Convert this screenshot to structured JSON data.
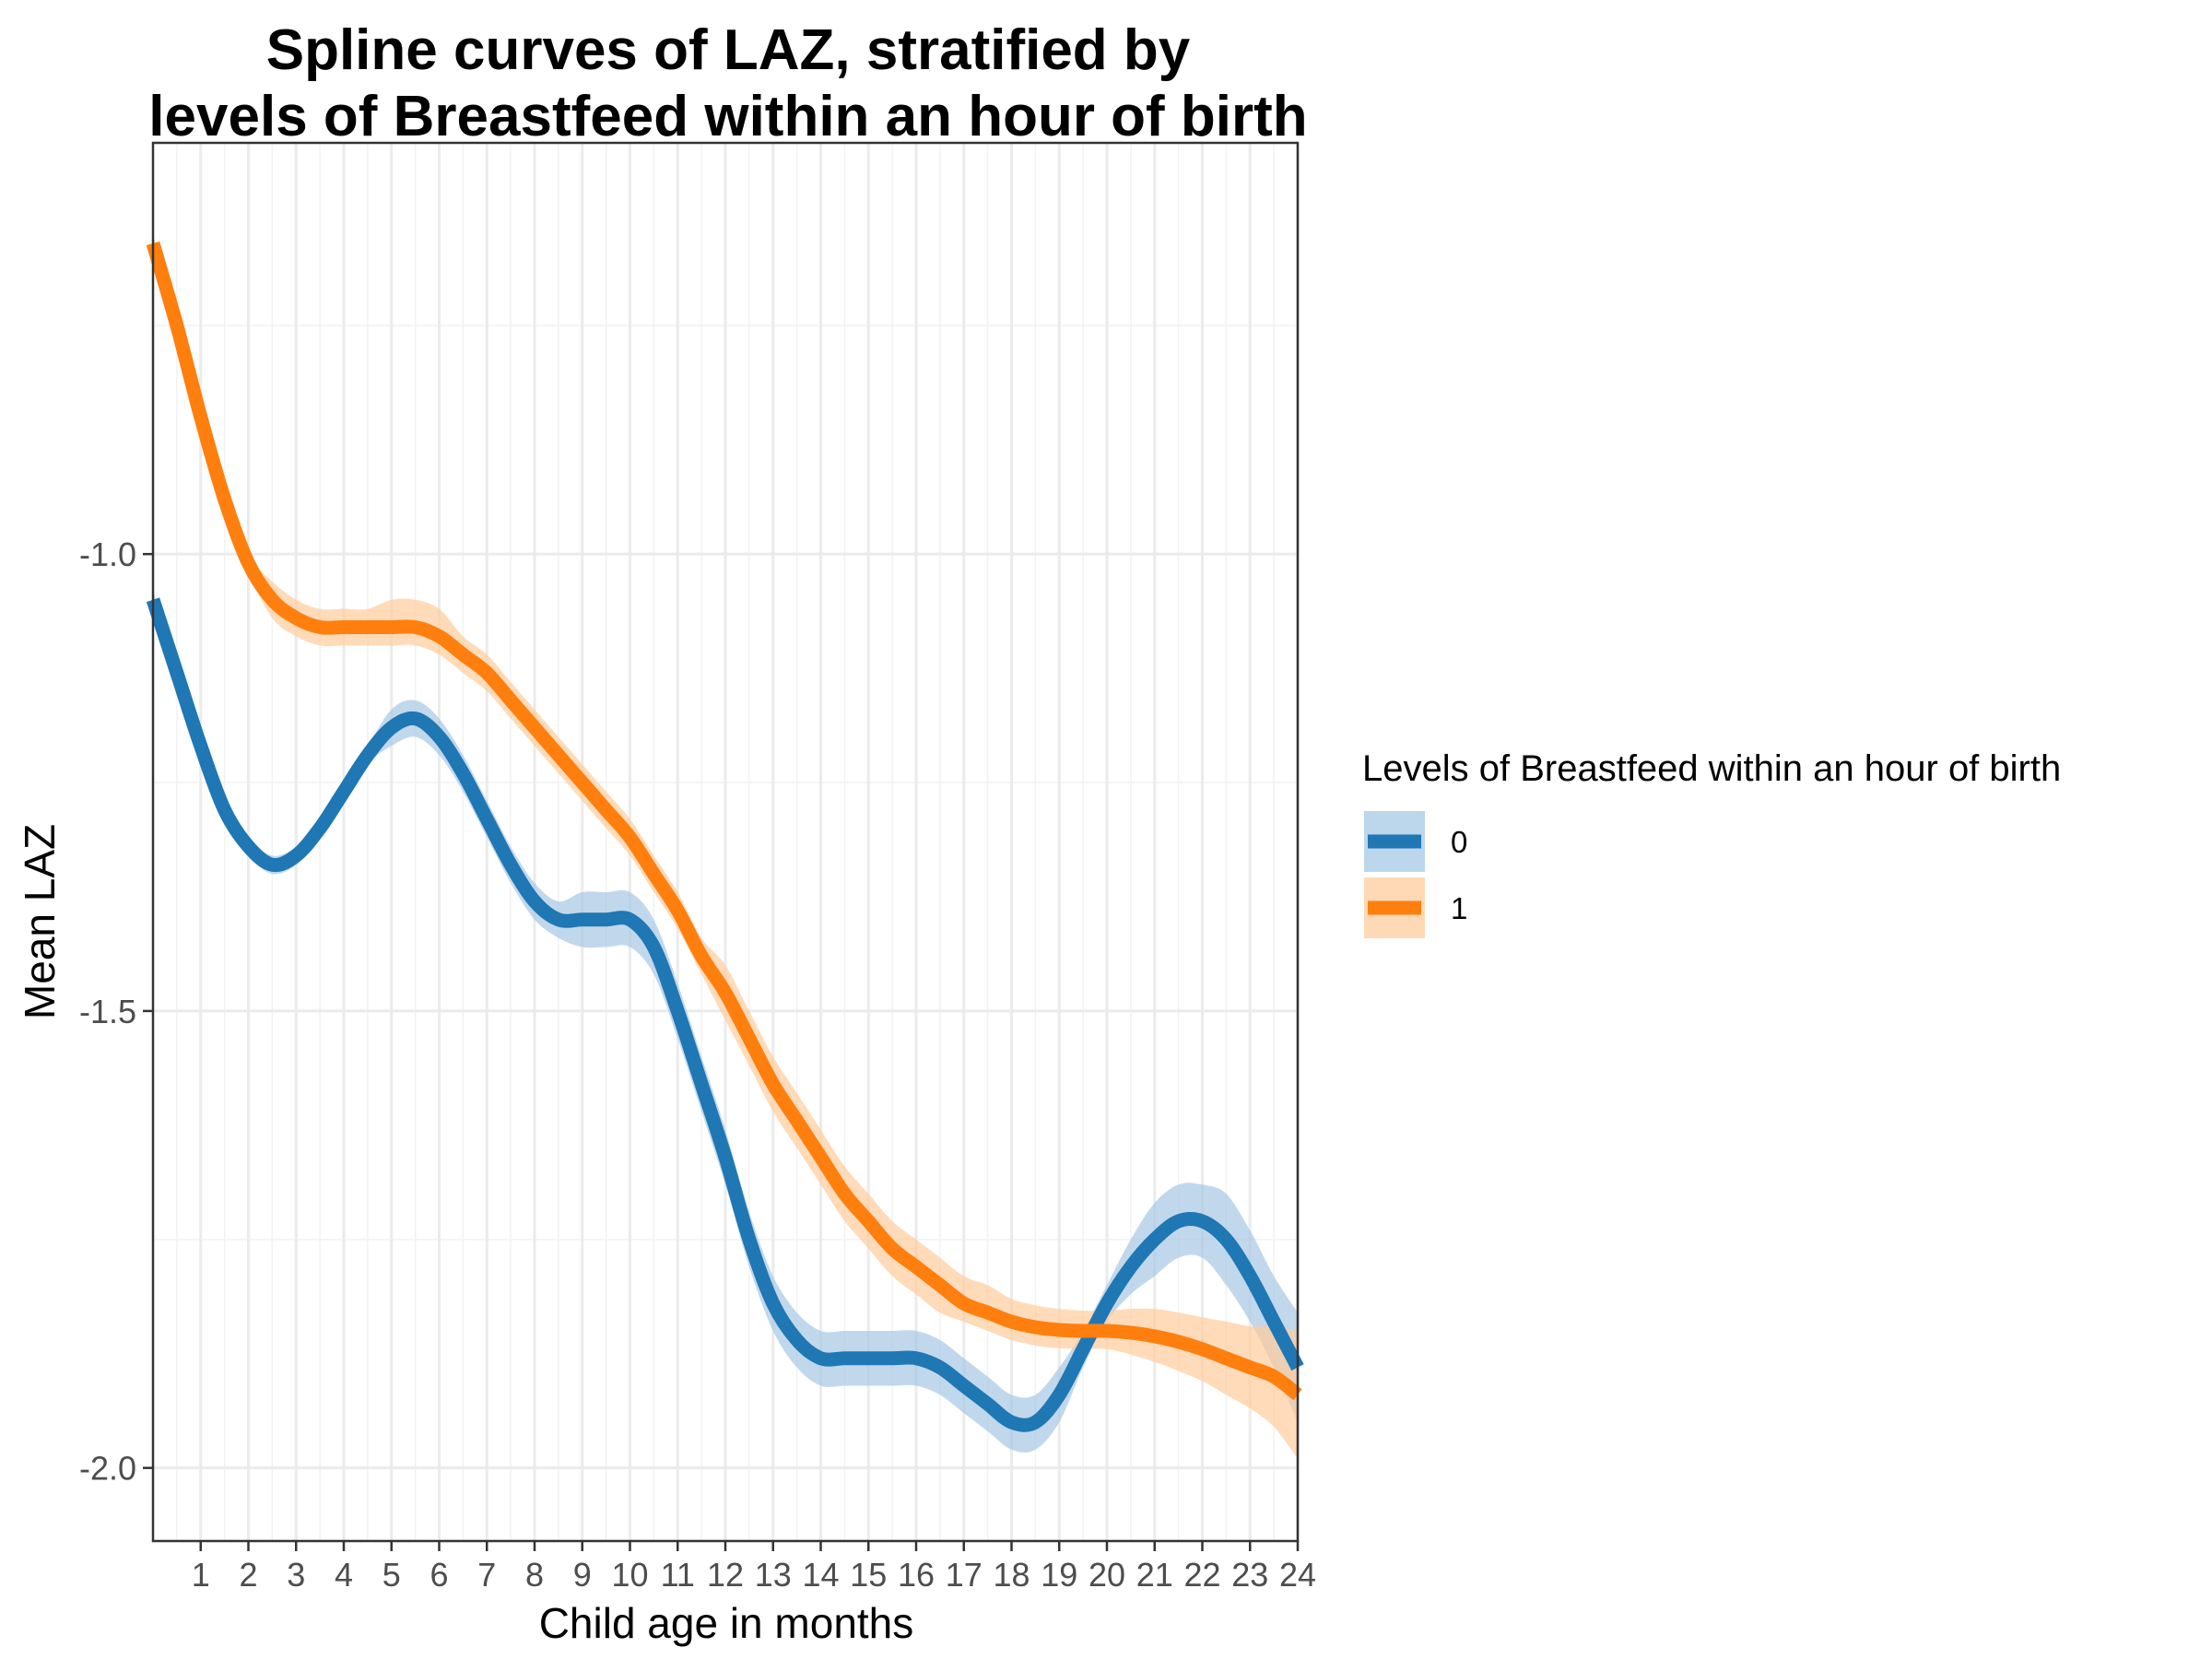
{
  "chart_data": {
    "type": "line",
    "title": [
      "Spline curves of LAZ, stratified by",
      "levels of Breastfeed within an hour of birth"
    ],
    "xlabel": "Child age in months",
    "ylabel": "Mean LAZ",
    "xlim": [
      0,
      24
    ],
    "ylim": [
      -2.08,
      -0.55
    ],
    "x_ticks": [
      1,
      2,
      3,
      4,
      5,
      6,
      7,
      8,
      9,
      10,
      11,
      12,
      13,
      14,
      15,
      16,
      17,
      18,
      19,
      20,
      21,
      22,
      23,
      24
    ],
    "x_tick_labels": [
      "1",
      "2",
      "3",
      "4",
      "5",
      "6",
      "7",
      "8",
      "9",
      "10",
      "11",
      "12",
      "13",
      "14",
      "15",
      "16",
      "17",
      "18",
      "19",
      "20",
      "21",
      "22",
      "23",
      "24"
    ],
    "y_ticks": [
      -1.0,
      -1.5,
      -2.0
    ],
    "y_tick_labels": [
      "-1.0",
      "-1.5",
      "-2.0"
    ],
    "grid": true,
    "legend": {
      "title": "Levels of Breastfeed within an hour of birth",
      "position": "right"
    },
    "series": [
      {
        "name": "0",
        "color": "#1F77B4",
        "band_color": "#A6C8E4",
        "x": [
          0,
          0.5,
          1,
          1.5,
          2,
          2.5,
          3,
          3.5,
          4,
          4.5,
          5,
          5.5,
          6,
          6.5,
          7,
          7.5,
          8,
          8.5,
          9,
          9.5,
          10,
          10.5,
          11,
          11.5,
          12,
          12.5,
          13,
          13.5,
          14,
          14.5,
          15,
          15.5,
          16,
          16.5,
          17,
          17.5,
          18,
          18.5,
          19,
          19.5,
          20,
          20.5,
          21,
          21.5,
          22,
          22.5,
          23,
          23.5,
          24
        ],
        "y": [
          -1.05,
          -1.13,
          -1.21,
          -1.28,
          -1.32,
          -1.34,
          -1.33,
          -1.3,
          -1.26,
          -1.22,
          -1.19,
          -1.18,
          -1.2,
          -1.24,
          -1.29,
          -1.34,
          -1.38,
          -1.4,
          -1.4,
          -1.4,
          -1.4,
          -1.43,
          -1.5,
          -1.58,
          -1.66,
          -1.75,
          -1.82,
          -1.86,
          -1.88,
          -1.88,
          -1.88,
          -1.88,
          -1.88,
          -1.89,
          -1.91,
          -1.93,
          -1.95,
          -1.95,
          -1.92,
          -1.87,
          -1.82,
          -1.78,
          -1.75,
          -1.73,
          -1.73,
          -1.75,
          -1.79,
          -1.84,
          -1.89
        ],
        "lower": [
          -1.06,
          -1.14,
          -1.22,
          -1.29,
          -1.33,
          -1.35,
          -1.34,
          -1.31,
          -1.27,
          -1.23,
          -1.21,
          -1.2,
          -1.22,
          -1.26,
          -1.31,
          -1.36,
          -1.4,
          -1.42,
          -1.43,
          -1.43,
          -1.43,
          -1.46,
          -1.53,
          -1.61,
          -1.69,
          -1.78,
          -1.85,
          -1.89,
          -1.91,
          -1.91,
          -1.91,
          -1.91,
          -1.91,
          -1.92,
          -1.94,
          -1.96,
          -1.98,
          -1.98,
          -1.95,
          -1.89,
          -1.84,
          -1.81,
          -1.79,
          -1.77,
          -1.77,
          -1.8,
          -1.84,
          -1.89,
          -1.95
        ],
        "upper": [
          -1.04,
          -1.12,
          -1.2,
          -1.27,
          -1.31,
          -1.33,
          -1.32,
          -1.29,
          -1.25,
          -1.21,
          -1.17,
          -1.16,
          -1.18,
          -1.22,
          -1.27,
          -1.32,
          -1.36,
          -1.38,
          -1.37,
          -1.37,
          -1.37,
          -1.4,
          -1.47,
          -1.55,
          -1.63,
          -1.72,
          -1.79,
          -1.83,
          -1.85,
          -1.85,
          -1.85,
          -1.85,
          -1.85,
          -1.86,
          -1.88,
          -1.9,
          -1.92,
          -1.92,
          -1.89,
          -1.85,
          -1.8,
          -1.75,
          -1.71,
          -1.69,
          -1.69,
          -1.7,
          -1.74,
          -1.79,
          -1.83
        ]
      },
      {
        "name": "1",
        "color": "#FF7F0E",
        "band_color": "#FFCC9C",
        "x": [
          0,
          0.5,
          1,
          1.5,
          2,
          2.5,
          3,
          3.5,
          4,
          4.5,
          5,
          5.5,
          6,
          6.5,
          7,
          7.5,
          8,
          8.5,
          9,
          9.5,
          10,
          10.5,
          11,
          11.5,
          12,
          12.5,
          13,
          13.5,
          14,
          14.5,
          15,
          15.5,
          16,
          16.5,
          17,
          17.5,
          18,
          18.5,
          19,
          19.5,
          20,
          20.5,
          21,
          21.5,
          22,
          22.5,
          23,
          23.5,
          24
        ],
        "y": [
          -0.66,
          -0.75,
          -0.85,
          -0.94,
          -1.01,
          -1.05,
          -1.07,
          -1.08,
          -1.08,
          -1.08,
          -1.08,
          -1.08,
          -1.09,
          -1.11,
          -1.13,
          -1.16,
          -1.19,
          -1.22,
          -1.25,
          -1.28,
          -1.31,
          -1.35,
          -1.39,
          -1.44,
          -1.48,
          -1.53,
          -1.58,
          -1.62,
          -1.66,
          -1.7,
          -1.73,
          -1.76,
          -1.78,
          -1.8,
          -1.82,
          -1.83,
          -1.84,
          -1.846,
          -1.849,
          -1.85,
          -1.85,
          -1.852,
          -1.856,
          -1.862,
          -1.87,
          -1.88,
          -1.89,
          -1.9,
          -1.92
        ],
        "lower": [
          -0.67,
          -0.76,
          -0.86,
          -0.95,
          -1.02,
          -1.07,
          -1.09,
          -1.1,
          -1.1,
          -1.1,
          -1.1,
          -1.1,
          -1.11,
          -1.13,
          -1.15,
          -1.18,
          -1.21,
          -1.24,
          -1.27,
          -1.3,
          -1.33,
          -1.37,
          -1.41,
          -1.46,
          -1.51,
          -1.56,
          -1.61,
          -1.65,
          -1.69,
          -1.73,
          -1.76,
          -1.79,
          -1.81,
          -1.83,
          -1.84,
          -1.85,
          -1.86,
          -1.866,
          -1.869,
          -1.87,
          -1.87,
          -1.876,
          -1.884,
          -1.894,
          -1.905,
          -1.92,
          -1.935,
          -1.955,
          -1.99
        ],
        "upper": [
          -0.65,
          -0.74,
          -0.84,
          -0.93,
          -1.0,
          -1.03,
          -1.05,
          -1.06,
          -1.06,
          -1.06,
          -1.05,
          -1.05,
          -1.06,
          -1.09,
          -1.11,
          -1.14,
          -1.17,
          -1.2,
          -1.23,
          -1.26,
          -1.29,
          -1.33,
          -1.37,
          -1.42,
          -1.45,
          -1.5,
          -1.55,
          -1.59,
          -1.63,
          -1.67,
          -1.7,
          -1.73,
          -1.75,
          -1.77,
          -1.79,
          -1.8,
          -1.815,
          -1.822,
          -1.826,
          -1.828,
          -1.828,
          -1.826,
          -1.826,
          -1.83,
          -1.835,
          -1.84,
          -1.845,
          -1.845,
          -1.85
        ]
      }
    ]
  }
}
